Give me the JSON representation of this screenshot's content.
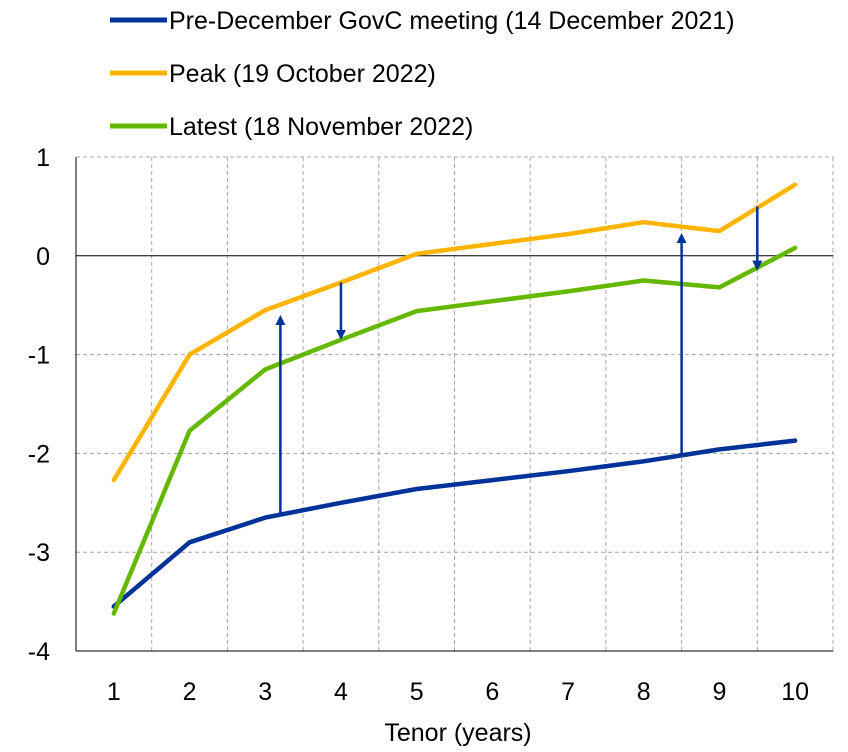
{
  "chart_data": {
    "type": "line",
    "title": "",
    "xlabel": "Tenor (years)",
    "ylabel": "",
    "x": [
      1,
      2,
      3,
      4,
      5,
      6,
      7,
      8,
      9,
      10
    ],
    "x_tick_labels": [
      "1",
      "2",
      "3",
      "4",
      "5",
      "6",
      "7",
      "8",
      "9",
      "10"
    ],
    "y_tick_labels": [
      "1",
      "0",
      "-1",
      "-2",
      "-3",
      "-4"
    ],
    "y_ticks": [
      1,
      0,
      -1,
      -2,
      -3,
      -4
    ],
    "xlim": [
      0.5,
      10.5
    ],
    "ylim": [
      -4,
      1
    ],
    "grid": true,
    "legend_position": "top",
    "series": [
      {
        "name": "Pre-December GovC meeting (14 December 2021)",
        "color": "#003299",
        "values": [
          -3.55,
          -2.9,
          -2.65,
          -2.5,
          -2.36,
          -2.27,
          -2.18,
          -2.08,
          -1.96,
          -1.87
        ]
      },
      {
        "name": "Peak (19 October 2022)",
        "color": "#FFB400",
        "values": [
          -2.27,
          -1.0,
          -0.55,
          -0.27,
          0.02,
          0.12,
          0.22,
          0.34,
          0.25,
          0.72
        ]
      },
      {
        "name": "Latest (18 November 2022)",
        "color": "#65B800",
        "values": [
          -3.62,
          -1.77,
          -1.15,
          -0.85,
          -0.56,
          -0.46,
          -0.36,
          -0.25,
          -0.32,
          0.08
        ]
      }
    ],
    "annotations": [
      {
        "type": "arrow",
        "color": "#003299",
        "x": 3.2,
        "from": -2.62,
        "to": -0.65
      },
      {
        "type": "arrow",
        "color": "#003299",
        "x": 4.0,
        "from": -0.27,
        "to": -0.8
      },
      {
        "type": "arrow",
        "color": "#003299",
        "x": 8.5,
        "from": -2.02,
        "to": 0.18
      },
      {
        "type": "arrow",
        "color": "#003299",
        "x": 9.5,
        "from": 0.5,
        "to": -0.1
      }
    ]
  }
}
